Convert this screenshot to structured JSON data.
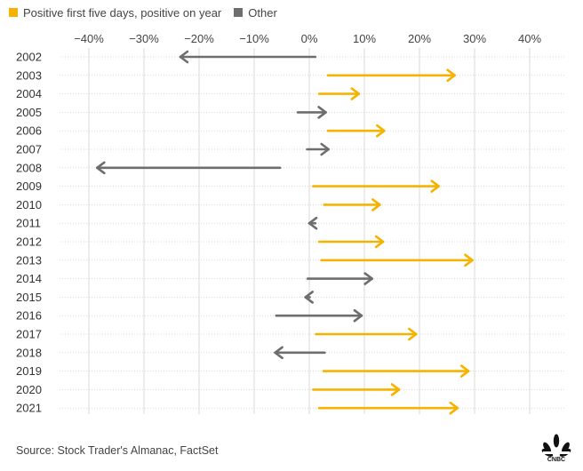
{
  "legend": {
    "positive_label": "Positive first five days, positive on year",
    "other_label": "Other"
  },
  "colors": {
    "positive": "#f5b300",
    "other": "#6e6e6e",
    "grid": "#d8d8d8"
  },
  "source": "Source: Stock Trader's Almanac, FactSet",
  "logo": {
    "text": "CNBC",
    "icon": "peacock-logo"
  },
  "chart_data": {
    "type": "arrow",
    "title": "",
    "xlabel": "",
    "ylabel": "",
    "xlim": [
      -40,
      40
    ],
    "xticks": [
      -40,
      -30,
      -20,
      -10,
      0,
      10,
      20,
      30,
      40
    ],
    "xtick_labels": [
      "−40%",
      "−30%",
      "−20%",
      "−10%",
      "0%",
      "10%",
      "20%",
      "30%",
      "40%"
    ],
    "grid": true,
    "legend_position": "top-left",
    "series": [
      {
        "name": "Positive first five days, positive on year",
        "key": "positive"
      },
      {
        "name": "Other",
        "key": "other"
      }
    ],
    "rows": [
      {
        "year": "2002",
        "start": 1.1,
        "end": -23.4,
        "group": "other"
      },
      {
        "year": "2003",
        "start": 3.4,
        "end": 26.4,
        "group": "positive"
      },
      {
        "year": "2004",
        "start": 1.8,
        "end": 9.0,
        "group": "positive"
      },
      {
        "year": "2005",
        "start": -2.1,
        "end": 3.0,
        "group": "other"
      },
      {
        "year": "2006",
        "start": 3.4,
        "end": 13.6,
        "group": "positive"
      },
      {
        "year": "2007",
        "start": -0.4,
        "end": 3.5,
        "group": "other"
      },
      {
        "year": "2008",
        "start": -5.3,
        "end": -38.5,
        "group": "other"
      },
      {
        "year": "2009",
        "start": 0.7,
        "end": 23.5,
        "group": "positive"
      },
      {
        "year": "2010",
        "start": 2.7,
        "end": 12.8,
        "group": "positive"
      },
      {
        "year": "2011",
        "start": 1.1,
        "end": 0.0,
        "group": "other"
      },
      {
        "year": "2012",
        "start": 1.8,
        "end": 13.4,
        "group": "positive"
      },
      {
        "year": "2013",
        "start": 2.2,
        "end": 29.6,
        "group": "positive"
      },
      {
        "year": "2014",
        "start": -0.3,
        "end": 11.4,
        "group": "other"
      },
      {
        "year": "2015",
        "start": 0.1,
        "end": -0.7,
        "group": "other"
      },
      {
        "year": "2016",
        "start": -6.0,
        "end": 9.5,
        "group": "other"
      },
      {
        "year": "2017",
        "start": 1.2,
        "end": 19.4,
        "group": "positive"
      },
      {
        "year": "2018",
        "start": 2.8,
        "end": -6.2,
        "group": "other"
      },
      {
        "year": "2019",
        "start": 2.6,
        "end": 28.9,
        "group": "positive"
      },
      {
        "year": "2020",
        "start": 0.7,
        "end": 16.3,
        "group": "positive"
      },
      {
        "year": "2021",
        "start": 1.8,
        "end": 26.9,
        "group": "positive"
      }
    ]
  }
}
